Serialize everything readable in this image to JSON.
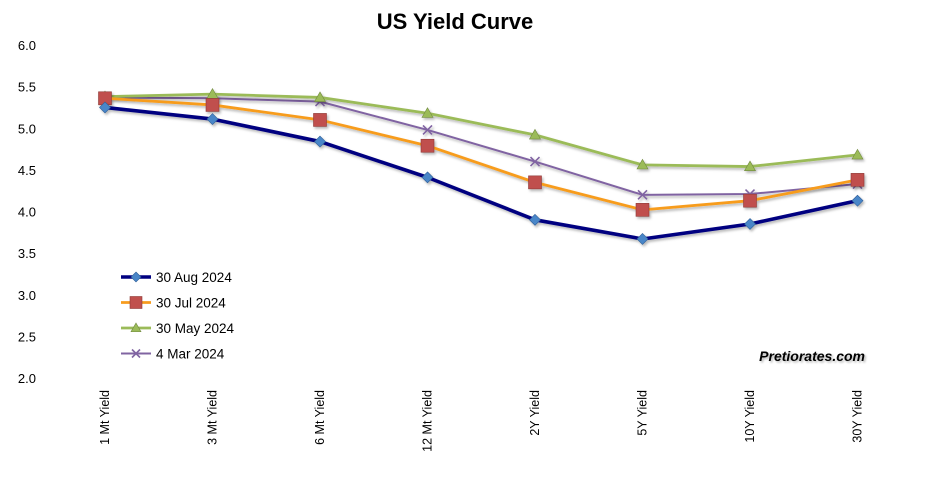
{
  "chart_data": {
    "type": "line",
    "title": "US Yield Curve",
    "xlabel": "",
    "ylabel": "",
    "categories": [
      "1 Mt Yield",
      "3 Mt Yield",
      "6 Mt Yield",
      "12 Mt Yield",
      "2Y Yield",
      "5Y Yield",
      "10Y Yield",
      "30Y Yield"
    ],
    "ylim": [
      2.0,
      6.0
    ],
    "yticks": [
      "2.0",
      "2.5",
      "3.0",
      "3.5",
      "4.0",
      "4.5",
      "5.0",
      "5.5",
      "6.0"
    ],
    "grid": false,
    "legend_position": "bottom-left",
    "series": [
      {
        "name": "30 Aug 2024",
        "color": "#000080",
        "marker_color": "#4A86C8",
        "marker": "diamond",
        "values": [
          5.25,
          5.11,
          4.84,
          4.41,
          3.9,
          3.67,
          3.85,
          4.13
        ]
      },
      {
        "name": "30 Jul 2024",
        "color": "#F79C1E",
        "marker_color": "#C0504D",
        "marker": "square",
        "values": [
          5.36,
          5.28,
          5.1,
          4.79,
          4.35,
          4.02,
          4.13,
          4.38
        ]
      },
      {
        "name": "30 May 2024",
        "color": "#9BBB59",
        "marker_color": "#9BBB59",
        "marker": "triangle",
        "values": [
          5.38,
          5.41,
          5.37,
          5.18,
          4.92,
          4.56,
          4.54,
          4.68
        ]
      },
      {
        "name": "4 Mar 2024",
        "color": "#8064A2",
        "marker_color": "#8064A2",
        "marker": "x",
        "values": [
          5.37,
          5.36,
          5.32,
          4.98,
          4.6,
          4.2,
          4.21,
          4.33
        ]
      }
    ],
    "watermark": "Pretiorates.com"
  }
}
